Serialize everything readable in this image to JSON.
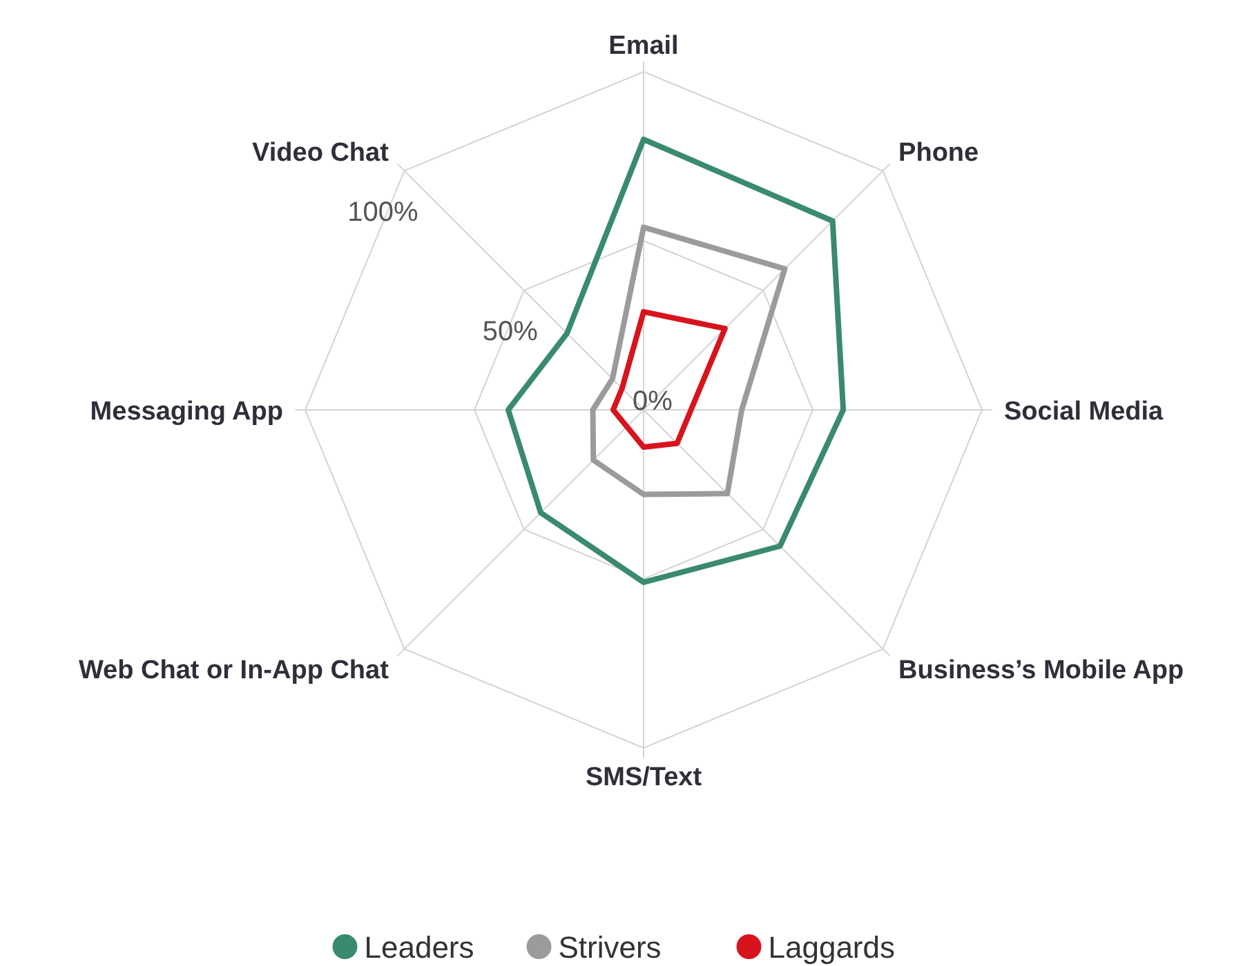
{
  "chart_data": {
    "type": "radar",
    "categories": [
      "Email",
      "Phone",
      "Social Media",
      "Business’s Mobile App",
      "SMS/Text",
      "Web Chat or In-App Chat",
      "Messaging App",
      "Video Chat"
    ],
    "series": [
      {
        "name": "Leaders",
        "color": "#3a8a6e",
        "values": [
          80,
          79,
          59,
          57,
          51,
          43,
          40,
          32
        ]
      },
      {
        "name": "Strivers",
        "color": "#9b9b9b",
        "values": [
          54,
          59,
          29,
          35,
          25,
          21,
          15,
          13
        ]
      },
      {
        "name": "Laggards",
        "color": "#d7141e",
        "values": [
          29,
          34,
          14,
          14,
          11,
          7,
          9,
          9
        ]
      }
    ],
    "ylim": [
      0,
      100
    ],
    "yticks": [
      {
        "value": 0,
        "label": "0%"
      },
      {
        "value": 50,
        "label": "50%"
      },
      {
        "value": 100,
        "label": "100%"
      }
    ],
    "grid": true,
    "legend": "bottom"
  }
}
